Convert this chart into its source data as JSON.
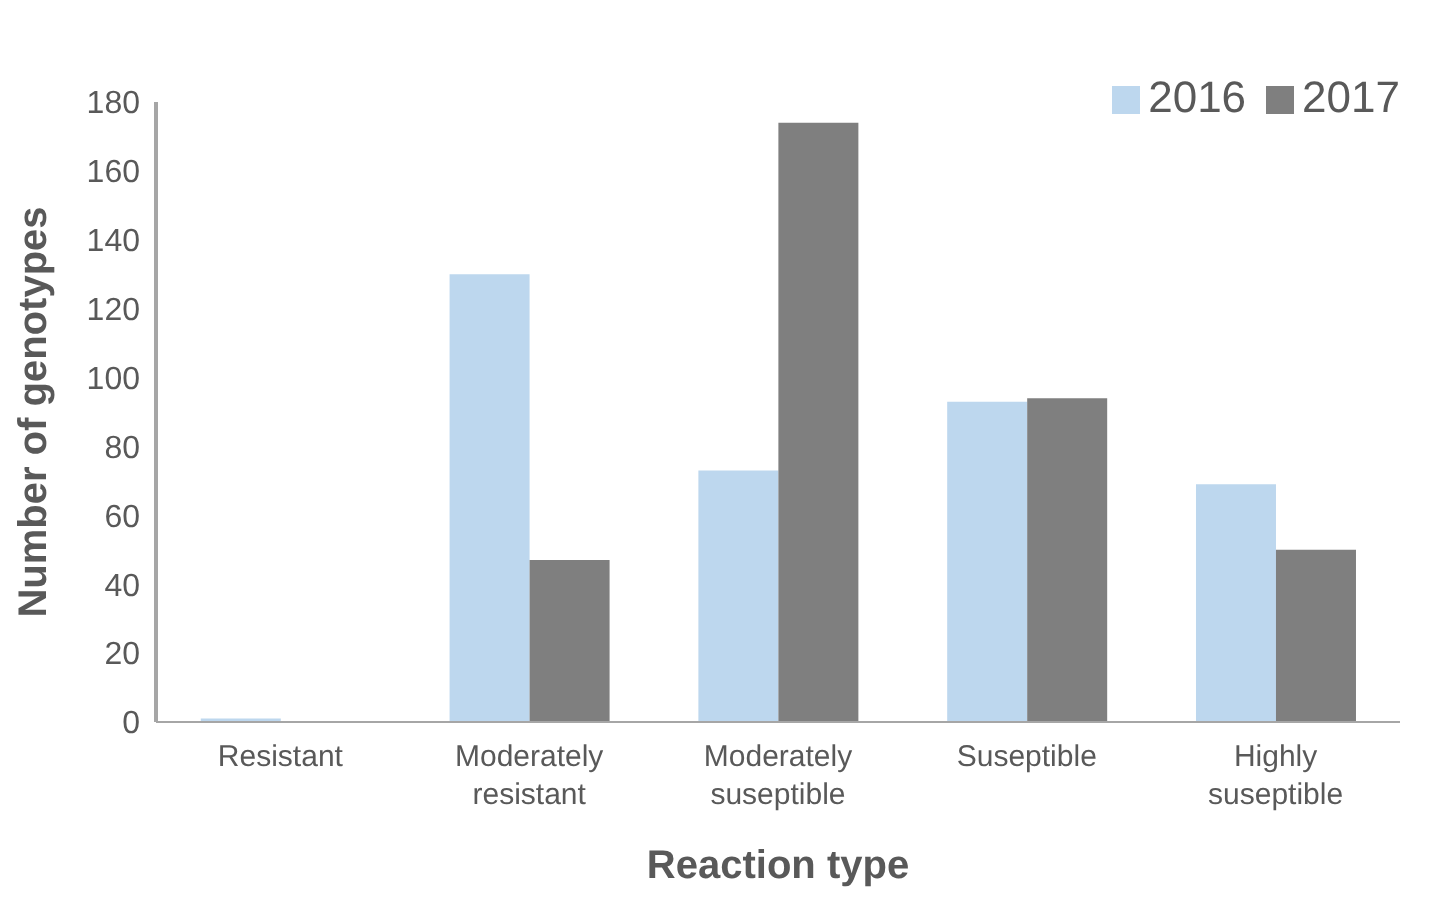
{
  "chart_data": {
    "type": "bar",
    "xlabel": "Reaction type",
    "ylabel": "Number of genotypes",
    "categories": [
      "Resistant",
      "Moderately resistant",
      "Moderately suseptible",
      "Suseptible",
      "Highly suseptible"
    ],
    "series": [
      {
        "name": "2016",
        "color": "#bdd7ee",
        "values": [
          1,
          130,
          73,
          93,
          69
        ]
      },
      {
        "name": "2017",
        "color": "#7f7f7f",
        "values": [
          0,
          47,
          174,
          94,
          50
        ]
      }
    ],
    "ylim": [
      0,
      180
    ],
    "yticks": [
      0,
      20,
      40,
      60,
      80,
      100,
      120,
      140,
      160,
      180
    ],
    "grid": false,
    "legend": "top right"
  }
}
